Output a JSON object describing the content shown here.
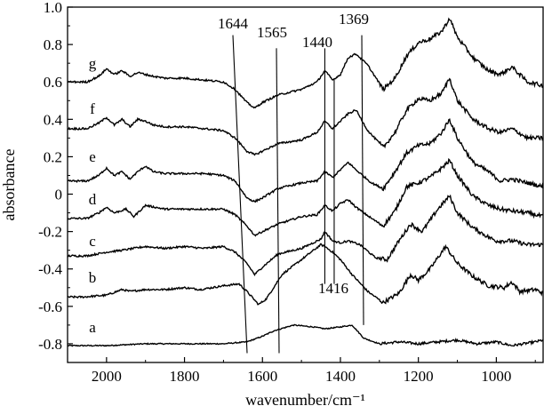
{
  "chart_data": {
    "type": "line",
    "title": "",
    "xlabel": "wavenumber/cm⁻¹",
    "ylabel": "absorbance",
    "xlim": [
      2100,
      880
    ],
    "ylim": [
      -0.9,
      1.0
    ],
    "x_reversed": true,
    "grid": false,
    "legend": "none",
    "xticks": [
      2000,
      1800,
      1600,
      1400,
      1200,
      1000
    ],
    "xtick_labels": [
      "2000",
      "1800",
      "1600",
      "1400",
      "1200",
      "1000"
    ],
    "yticks": [
      -0.8,
      -0.6,
      -0.4,
      -0.2,
      0,
      0.2,
      0.4,
      0.6,
      0.8,
      1.0
    ],
    "ytick_labels": [
      "-0.8",
      "-0.6",
      "-0.4",
      "-0.2",
      "0",
      "0.2",
      "0.4",
      "0.6",
      "0.8",
      "1.0"
    ],
    "line_color": "#000000",
    "series": [
      {
        "name": "a",
        "points": [
          [
            2100,
            -0.81
          ],
          [
            2000,
            -0.81
          ],
          [
            1900,
            -0.8
          ],
          [
            1800,
            -0.8
          ],
          [
            1700,
            -0.8
          ],
          [
            1640,
            -0.79
          ],
          [
            1600,
            -0.76
          ],
          [
            1570,
            -0.73
          ],
          [
            1520,
            -0.7
          ],
          [
            1470,
            -0.71
          ],
          [
            1440,
            -0.72
          ],
          [
            1400,
            -0.71
          ],
          [
            1370,
            -0.7
          ],
          [
            1340,
            -0.77
          ],
          [
            1300,
            -0.8
          ],
          [
            1250,
            -0.79
          ],
          [
            1200,
            -0.8
          ],
          [
            1150,
            -0.79
          ],
          [
            1100,
            -0.78
          ],
          [
            1050,
            -0.8
          ],
          [
            1000,
            -0.79
          ],
          [
            960,
            -0.81
          ],
          [
            900,
            -0.79
          ],
          [
            880,
            -0.78
          ]
        ]
      },
      {
        "name": "b",
        "points": [
          [
            2100,
            -0.55
          ],
          [
            2060,
            -0.55
          ],
          [
            2000,
            -0.54
          ],
          [
            1960,
            -0.51
          ],
          [
            1940,
            -0.52
          ],
          [
            1900,
            -0.51
          ],
          [
            1850,
            -0.51
          ],
          [
            1800,
            -0.5
          ],
          [
            1760,
            -0.51
          ],
          [
            1700,
            -0.49
          ],
          [
            1660,
            -0.48
          ],
          [
            1640,
            -0.52
          ],
          [
            1610,
            -0.59
          ],
          [
            1590,
            -0.56
          ],
          [
            1550,
            -0.43
          ],
          [
            1500,
            -0.35
          ],
          [
            1450,
            -0.27
          ],
          [
            1440,
            -0.28
          ],
          [
            1420,
            -0.31
          ],
          [
            1400,
            -0.35
          ],
          [
            1370,
            -0.43
          ],
          [
            1330,
            -0.52
          ],
          [
            1290,
            -0.58
          ],
          [
            1250,
            -0.53
          ],
          [
            1220,
            -0.43
          ],
          [
            1200,
            -0.46
          ],
          [
            1170,
            -0.4
          ],
          [
            1130,
            -0.28
          ],
          [
            1100,
            -0.37
          ],
          [
            1060,
            -0.44
          ],
          [
            1020,
            -0.49
          ],
          [
            980,
            -0.5
          ],
          [
            960,
            -0.47
          ],
          [
            940,
            -0.52
          ],
          [
            900,
            -0.51
          ],
          [
            880,
            -0.53
          ]
        ]
      },
      {
        "name": "c",
        "points": [
          [
            2100,
            -0.33
          ],
          [
            2050,
            -0.33
          ],
          [
            2000,
            -0.31
          ],
          [
            1960,
            -0.3
          ],
          [
            1900,
            -0.28
          ],
          [
            1850,
            -0.29
          ],
          [
            1800,
            -0.28
          ],
          [
            1750,
            -0.29
          ],
          [
            1700,
            -0.28
          ],
          [
            1670,
            -0.31
          ],
          [
            1640,
            -0.37
          ],
          [
            1620,
            -0.43
          ],
          [
            1600,
            -0.39
          ],
          [
            1560,
            -0.32
          ],
          [
            1500,
            -0.29
          ],
          [
            1450,
            -0.24
          ],
          [
            1440,
            -0.2
          ],
          [
            1420,
            -0.25
          ],
          [
            1400,
            -0.26
          ],
          [
            1380,
            -0.25
          ],
          [
            1350,
            -0.27
          ],
          [
            1310,
            -0.34
          ],
          [
            1280,
            -0.35
          ],
          [
            1250,
            -0.25
          ],
          [
            1220,
            -0.16
          ],
          [
            1190,
            -0.2
          ],
          [
            1170,
            -0.14
          ],
          [
            1150,
            -0.08
          ],
          [
            1120,
            -0.01
          ],
          [
            1100,
            -0.1
          ],
          [
            1060,
            -0.18
          ],
          [
            1020,
            -0.23
          ],
          [
            1000,
            -0.25
          ],
          [
            960,
            -0.25
          ],
          [
            920,
            -0.27
          ],
          [
            880,
            -0.27
          ]
        ]
      },
      {
        "name": "d",
        "points": [
          [
            2100,
            -0.13
          ],
          [
            2050,
            -0.13
          ],
          [
            2020,
            -0.1
          ],
          [
            2000,
            -0.07
          ],
          [
            1980,
            -0.1
          ],
          [
            1950,
            -0.08
          ],
          [
            1930,
            -0.12
          ],
          [
            1900,
            -0.06
          ],
          [
            1850,
            -0.08
          ],
          [
            1800,
            -0.08
          ],
          [
            1750,
            -0.08
          ],
          [
            1700,
            -0.08
          ],
          [
            1670,
            -0.11
          ],
          [
            1640,
            -0.17
          ],
          [
            1620,
            -0.22
          ],
          [
            1600,
            -0.2
          ],
          [
            1560,
            -0.16
          ],
          [
            1500,
            -0.12
          ],
          [
            1460,
            -0.11
          ],
          [
            1440,
            -0.06
          ],
          [
            1420,
            -0.09
          ],
          [
            1400,
            -0.05
          ],
          [
            1380,
            -0.03
          ],
          [
            1360,
            -0.07
          ],
          [
            1320,
            -0.13
          ],
          [
            1290,
            -0.17
          ],
          [
            1260,
            -0.09
          ],
          [
            1230,
            0.04
          ],
          [
            1200,
            0.06
          ],
          [
            1170,
            0.09
          ],
          [
            1140,
            0.14
          ],
          [
            1120,
            0.18
          ],
          [
            1100,
            0.1
          ],
          [
            1060,
            -0.01
          ],
          [
            1020,
            -0.06
          ],
          [
            990,
            -0.08
          ],
          [
            960,
            -0.09
          ],
          [
            920,
            -0.1
          ],
          [
            880,
            -0.12
          ]
        ]
      },
      {
        "name": "e",
        "points": [
          [
            2100,
            0.07
          ],
          [
            2050,
            0.07
          ],
          [
            2020,
            0.1
          ],
          [
            2000,
            0.14
          ],
          [
            1980,
            0.1
          ],
          [
            1960,
            0.12
          ],
          [
            1940,
            0.08
          ],
          [
            1920,
            0.12
          ],
          [
            1900,
            0.15
          ],
          [
            1880,
            0.12
          ],
          [
            1850,
            0.11
          ],
          [
            1800,
            0.11
          ],
          [
            1750,
            0.11
          ],
          [
            1700,
            0.1
          ],
          [
            1670,
            0.07
          ],
          [
            1640,
            -0.02
          ],
          [
            1620,
            -0.04
          ],
          [
            1600,
            -0.02
          ],
          [
            1560,
            0.03
          ],
          [
            1500,
            0.06
          ],
          [
            1460,
            0.07
          ],
          [
            1440,
            0.12
          ],
          [
            1420,
            0.09
          ],
          [
            1400,
            0.13
          ],
          [
            1380,
            0.17
          ],
          [
            1360,
            0.13
          ],
          [
            1320,
            0.06
          ],
          [
            1290,
            0.03
          ],
          [
            1260,
            0.12
          ],
          [
            1230,
            0.22
          ],
          [
            1200,
            0.26
          ],
          [
            1170,
            0.27
          ],
          [
            1140,
            0.33
          ],
          [
            1120,
            0.4
          ],
          [
            1100,
            0.3
          ],
          [
            1060,
            0.17
          ],
          [
            1020,
            0.12
          ],
          [
            990,
            0.07
          ],
          [
            960,
            0.08
          ],
          [
            920,
            0.06
          ],
          [
            880,
            0.04
          ]
        ]
      },
      {
        "name": "f",
        "points": [
          [
            2100,
            0.35
          ],
          [
            2050,
            0.35
          ],
          [
            2020,
            0.38
          ],
          [
            2000,
            0.41
          ],
          [
            1980,
            0.37
          ],
          [
            1960,
            0.4
          ],
          [
            1940,
            0.36
          ],
          [
            1920,
            0.4
          ],
          [
            1900,
            0.39
          ],
          [
            1880,
            0.37
          ],
          [
            1850,
            0.36
          ],
          [
            1800,
            0.36
          ],
          [
            1750,
            0.35
          ],
          [
            1700,
            0.34
          ],
          [
            1670,
            0.3
          ],
          [
            1640,
            0.23
          ],
          [
            1620,
            0.21
          ],
          [
            1600,
            0.23
          ],
          [
            1560,
            0.27
          ],
          [
            1500,
            0.29
          ],
          [
            1460,
            0.33
          ],
          [
            1440,
            0.39
          ],
          [
            1420,
            0.35
          ],
          [
            1400,
            0.39
          ],
          [
            1380,
            0.43
          ],
          [
            1360,
            0.45
          ],
          [
            1330,
            0.34
          ],
          [
            1290,
            0.25
          ],
          [
            1260,
            0.33
          ],
          [
            1230,
            0.45
          ],
          [
            1200,
            0.51
          ],
          [
            1170,
            0.5
          ],
          [
            1140,
            0.54
          ],
          [
            1120,
            0.62
          ],
          [
            1100,
            0.5
          ],
          [
            1060,
            0.4
          ],
          [
            1020,
            0.35
          ],
          [
            990,
            0.33
          ],
          [
            960,
            0.35
          ],
          [
            920,
            0.3
          ],
          [
            880,
            0.3
          ]
        ]
      },
      {
        "name": "g",
        "points": [
          [
            2100,
            0.6
          ],
          [
            2050,
            0.6
          ],
          [
            2020,
            0.63
          ],
          [
            2000,
            0.67
          ],
          [
            1980,
            0.64
          ],
          [
            1960,
            0.66
          ],
          [
            1940,
            0.63
          ],
          [
            1920,
            0.65
          ],
          [
            1900,
            0.64
          ],
          [
            1880,
            0.63
          ],
          [
            1850,
            0.62
          ],
          [
            1800,
            0.62
          ],
          [
            1750,
            0.61
          ],
          [
            1700,
            0.6
          ],
          [
            1670,
            0.56
          ],
          [
            1640,
            0.49
          ],
          [
            1620,
            0.46
          ],
          [
            1600,
            0.49
          ],
          [
            1560,
            0.53
          ],
          [
            1500,
            0.56
          ],
          [
            1460,
            0.6
          ],
          [
            1440,
            0.66
          ],
          [
            1420,
            0.61
          ],
          [
            1400,
            0.64
          ],
          [
            1380,
            0.73
          ],
          [
            1360,
            0.75
          ],
          [
            1330,
            0.69
          ],
          [
            1290,
            0.56
          ],
          [
            1260,
            0.62
          ],
          [
            1230,
            0.74
          ],
          [
            1200,
            0.81
          ],
          [
            1170,
            0.83
          ],
          [
            1140,
            0.87
          ],
          [
            1120,
            0.94
          ],
          [
            1100,
            0.84
          ],
          [
            1060,
            0.73
          ],
          [
            1020,
            0.66
          ],
          [
            990,
            0.64
          ],
          [
            960,
            0.68
          ],
          [
            920,
            0.6
          ],
          [
            880,
            0.58
          ]
        ]
      }
    ],
    "annotations": [
      {
        "label": "1644",
        "x": 1644
      },
      {
        "label": "1565",
        "x": 1565
      },
      {
        "label": "1440",
        "x": 1440
      },
      {
        "label": "1416",
        "x": 1416
      },
      {
        "label": "1369",
        "x": 1369
      }
    ]
  }
}
